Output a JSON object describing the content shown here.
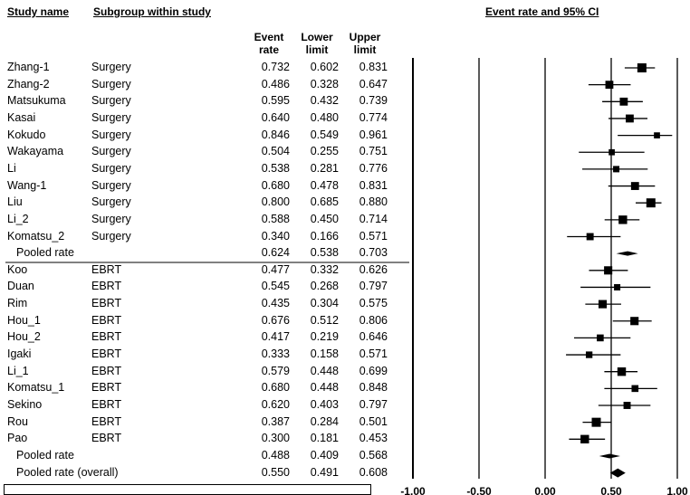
{
  "header": {
    "study_name": "Study name",
    "subgroup": "Subgroup within study",
    "event_rate_ci": "Event rate and 95% CI",
    "col_event": [
      "Event",
      "rate"
    ],
    "col_lower": [
      "Lower",
      "limit"
    ],
    "col_upper": [
      "Upper",
      "limit"
    ]
  },
  "rows": [
    {
      "study": "Zhang-1",
      "subgroup": "Surgery",
      "rate": "0.732",
      "lower": "0.602",
      "upper": "0.831",
      "kind": "study"
    },
    {
      "study": "Zhang-2",
      "subgroup": "Surgery",
      "rate": "0.486",
      "lower": "0.328",
      "upper": "0.647",
      "kind": "study"
    },
    {
      "study": "Matsukuma",
      "subgroup": "Surgery",
      "rate": "0.595",
      "lower": "0.432",
      "upper": "0.739",
      "kind": "study"
    },
    {
      "study": "Kasai",
      "subgroup": "Surgery",
      "rate": "0.640",
      "lower": "0.480",
      "upper": "0.774",
      "kind": "study"
    },
    {
      "study": "Kokudo",
      "subgroup": "Surgery",
      "rate": "0.846",
      "lower": "0.549",
      "upper": "0.961",
      "kind": "study"
    },
    {
      "study": "Wakayama",
      "subgroup": "Surgery",
      "rate": "0.504",
      "lower": "0.255",
      "upper": "0.751",
      "kind": "study"
    },
    {
      "study": "Li",
      "subgroup": "Surgery",
      "rate": "0.538",
      "lower": "0.281",
      "upper": "0.776",
      "kind": "study"
    },
    {
      "study": "Wang-1",
      "subgroup": "Surgery",
      "rate": "0.680",
      "lower": "0.478",
      "upper": "0.831",
      "kind": "study"
    },
    {
      "study": "Liu",
      "subgroup": "Surgery",
      "rate": "0.800",
      "lower": "0.685",
      "upper": "0.880",
      "kind": "study"
    },
    {
      "study": "Li_2",
      "subgroup": "Surgery",
      "rate": "0.588",
      "lower": "0.450",
      "upper": "0.714",
      "kind": "study"
    },
    {
      "study": "Komatsu_2",
      "subgroup": "Surgery",
      "rate": "0.340",
      "lower": "0.166",
      "upper": "0.571",
      "kind": "study"
    },
    {
      "study": "Pooled rate",
      "subgroup": "",
      "rate": "0.624",
      "lower": "0.538",
      "upper": "0.703",
      "kind": "pooled"
    },
    {
      "study": "Koo",
      "subgroup": "EBRT",
      "rate": "0.477",
      "lower": "0.332",
      "upper": "0.626",
      "kind": "study"
    },
    {
      "study": "Duan",
      "subgroup": "EBRT",
      "rate": "0.545",
      "lower": "0.268",
      "upper": "0.797",
      "kind": "study"
    },
    {
      "study": "Rim",
      "subgroup": "EBRT",
      "rate": "0.435",
      "lower": "0.304",
      "upper": "0.575",
      "kind": "study"
    },
    {
      "study": "Hou_1",
      "subgroup": "EBRT",
      "rate": "0.676",
      "lower": "0.512",
      "upper": "0.806",
      "kind": "study"
    },
    {
      "study": "Hou_2",
      "subgroup": "EBRT",
      "rate": "0.417",
      "lower": "0.219",
      "upper": "0.646",
      "kind": "study"
    },
    {
      "study": "Igaki",
      "subgroup": "EBRT",
      "rate": "0.333",
      "lower": "0.158",
      "upper": "0.571",
      "kind": "study"
    },
    {
      "study": "Li_1",
      "subgroup": "EBRT",
      "rate": "0.579",
      "lower": "0.448",
      "upper": "0.699",
      "kind": "study"
    },
    {
      "study": "Komatsu_1",
      "subgroup": "EBRT",
      "rate": "0.680",
      "lower": "0.448",
      "upper": "0.848",
      "kind": "study"
    },
    {
      "study": "Sekino",
      "subgroup": "EBRT",
      "rate": "0.620",
      "lower": "0.403",
      "upper": "0.797",
      "kind": "study"
    },
    {
      "study": "Rou",
      "subgroup": "EBRT",
      "rate": "0.387",
      "lower": "0.284",
      "upper": "0.501",
      "kind": "study"
    },
    {
      "study": "Pao",
      "subgroup": "EBRT",
      "rate": "0.300",
      "lower": "0.181",
      "upper": "0.453",
      "kind": "study"
    },
    {
      "study": "Pooled rate",
      "subgroup": "",
      "rate": "0.488",
      "lower": "0.409",
      "upper": "0.568",
      "kind": "pooled"
    },
    {
      "study": "Pooled rate (overall)",
      "subgroup": "",
      "rate": "0.550",
      "lower": "0.491",
      "upper": "0.608",
      "kind": "overall"
    }
  ],
  "chart_data": {
    "type": "scatter",
    "subtype": "forest-plot",
    "title": "Event rate and 95% CI",
    "xlim": [
      -1.0,
      1.0
    ],
    "x_ticks": [
      -1.0,
      -0.5,
      0.0,
      0.5,
      1.0
    ],
    "x_tick_labels": [
      "-1.00",
      "-0.50",
      "0.00",
      "0.50",
      "1.00"
    ],
    "reference_lines": [
      -1.0,
      -0.5,
      0.0,
      0.5,
      1.0
    ],
    "subgroup_separator_after_row": 11,
    "series": [
      {
        "name": "Surgery",
        "studies": [
          "Zhang-1",
          "Zhang-2",
          "Matsukuma",
          "Kasai",
          "Kokudo",
          "Wakayama",
          "Li",
          "Wang-1",
          "Liu",
          "Li_2",
          "Komatsu_2"
        ],
        "rate": [
          0.732,
          0.486,
          0.595,
          0.64,
          0.846,
          0.504,
          0.538,
          0.68,
          0.8,
          0.588,
          0.34
        ],
        "lower": [
          0.602,
          0.328,
          0.432,
          0.48,
          0.549,
          0.255,
          0.281,
          0.478,
          0.685,
          0.45,
          0.166
        ],
        "upper": [
          0.831,
          0.647,
          0.739,
          0.774,
          0.961,
          0.751,
          0.776,
          0.831,
          0.88,
          0.714,
          0.571
        ],
        "marker_weight": [
          1.0,
          0.8,
          0.8,
          0.8,
          0.45,
          0.45,
          0.5,
          0.8,
          1.0,
          0.9,
          0.65
        ],
        "pooled": {
          "rate": 0.624,
          "lower": 0.538,
          "upper": 0.703
        }
      },
      {
        "name": "EBRT",
        "studies": [
          "Koo",
          "Duan",
          "Rim",
          "Hou_1",
          "Hou_2",
          "Igaki",
          "Li_1",
          "Komatsu_1",
          "Sekino",
          "Rou",
          "Pao"
        ],
        "rate": [
          0.477,
          0.545,
          0.435,
          0.676,
          0.417,
          0.333,
          0.579,
          0.68,
          0.62,
          0.387,
          0.3
        ],
        "lower": [
          0.332,
          0.268,
          0.304,
          0.512,
          0.219,
          0.158,
          0.448,
          0.448,
          0.403,
          0.284,
          0.181
        ],
        "upper": [
          0.626,
          0.797,
          0.575,
          0.806,
          0.646,
          0.571,
          0.699,
          0.848,
          0.797,
          0.501,
          0.453
        ],
        "marker_weight": [
          0.85,
          0.5,
          0.85,
          0.85,
          0.6,
          0.55,
          0.9,
          0.6,
          0.65,
          1.0,
          0.9
        ],
        "pooled": {
          "rate": 0.488,
          "lower": 0.409,
          "upper": 0.568
        }
      }
    ],
    "overall": {
      "rate": 0.55,
      "lower": 0.491,
      "upper": 0.608
    }
  }
}
